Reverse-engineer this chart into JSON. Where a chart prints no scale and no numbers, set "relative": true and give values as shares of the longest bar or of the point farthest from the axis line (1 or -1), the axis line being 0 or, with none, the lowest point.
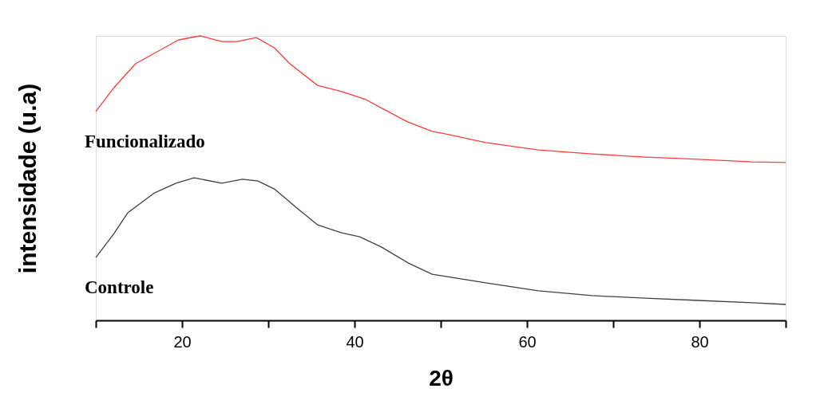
{
  "chart_data": {
    "type": "line",
    "relative": true,
    "xlabel": "2θ",
    "ylabel": "intensidade (u.a)",
    "xlim": [
      10,
      90
    ],
    "xticks": [
      {
        "value": 10,
        "label": null
      },
      20,
      {
        "value": 30,
        "label": null
      },
      40,
      {
        "value": 50,
        "label": null
      },
      60,
      {
        "value": 70,
        "label": null
      },
      80,
      {
        "value": 90,
        "label": null
      }
    ],
    "grid": false,
    "legend": false,
    "marker": "none",
    "line_style": "solid",
    "series": [
      {
        "name": "Funcionalizado",
        "color": "#ff3b3b",
        "x": [
          10,
          12.1,
          14.6,
          17.1,
          19.6,
          22.1,
          24.6,
          26.4,
          28.6,
          30.7,
          32.5,
          35.7,
          38.5,
          41.3,
          43.4,
          46.2,
          49.0,
          50.6,
          55.2,
          61.3,
          67.5,
          73.7,
          79.9,
          86.1,
          90
        ],
        "values": [
          0.734,
          0.818,
          0.902,
          0.944,
          0.986,
          1.0,
          0.98,
          0.98,
          0.994,
          0.958,
          0.902,
          0.826,
          0.804,
          0.776,
          0.742,
          0.697,
          0.664,
          0.655,
          0.625,
          0.599,
          0.585,
          0.574,
          0.566,
          0.557,
          0.555
        ]
      },
      {
        "name": "Controle",
        "color": "#404040",
        "x": [
          10,
          12.1,
          13.7,
          16.8,
          19.3,
          21.4,
          24.6,
          27.0,
          28.8,
          30.7,
          33.2,
          35.7,
          38.5,
          40.6,
          43.1,
          46.2,
          49.0,
          55.2,
          61.3,
          67.5,
          73.7,
          79.9,
          86.1,
          90
        ],
        "values": [
          0.221,
          0.305,
          0.378,
          0.448,
          0.482,
          0.501,
          0.482,
          0.496,
          0.49,
          0.462,
          0.398,
          0.336,
          0.308,
          0.294,
          0.258,
          0.202,
          0.162,
          0.132,
          0.104,
          0.087,
          0.078,
          0.07,
          0.062,
          0.056
        ]
      }
    ]
  }
}
